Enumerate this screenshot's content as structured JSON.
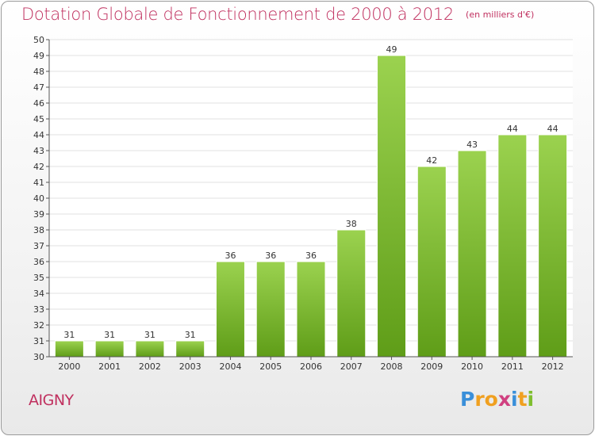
{
  "title": "Dotation Globale de Fonctionnement de 2000 à 2012",
  "unit_note": "(en milliers d'€)",
  "commune": "AIGNY",
  "logo": {
    "letters": [
      "P",
      "r",
      "o",
      "x",
      "i",
      "t",
      "i"
    ],
    "colors": [
      "#3a8fd9",
      "#f0a020",
      "#f0a020",
      "#d04080",
      "#3a8fd9",
      "#f0a020",
      "#7fbf2f"
    ]
  },
  "colors": {
    "accent": "#c0305f",
    "bar_top": "#9bd24f",
    "bar_bottom": "#5f9d18",
    "grid": "#e0e0e0",
    "axis": "#555555"
  },
  "chart_data": {
    "type": "bar",
    "categories": [
      "2000",
      "2001",
      "2002",
      "2003",
      "2004",
      "2005",
      "2006",
      "2007",
      "2008",
      "2009",
      "2010",
      "2011",
      "2012"
    ],
    "values": [
      31,
      31,
      31,
      31,
      36,
      36,
      36,
      38,
      49,
      42,
      43,
      44,
      44
    ],
    "data_labels": [
      "31",
      "31",
      "31",
      "31",
      "36",
      "36",
      "36",
      "38",
      "49",
      "42",
      "43",
      "44",
      "44"
    ],
    "y_ticks": [
      "30",
      "31",
      "32",
      "33",
      "34",
      "35",
      "36",
      "37",
      "38",
      "39",
      "40",
      "41",
      "42",
      "43",
      "44",
      "45",
      "46",
      "47",
      "48",
      "49",
      "50"
    ],
    "ylim": [
      30,
      50
    ],
    "grid": true,
    "title": "Dotation Globale de Fonctionnement de 2000 à 2012",
    "xlabel": "",
    "ylabel": ""
  }
}
